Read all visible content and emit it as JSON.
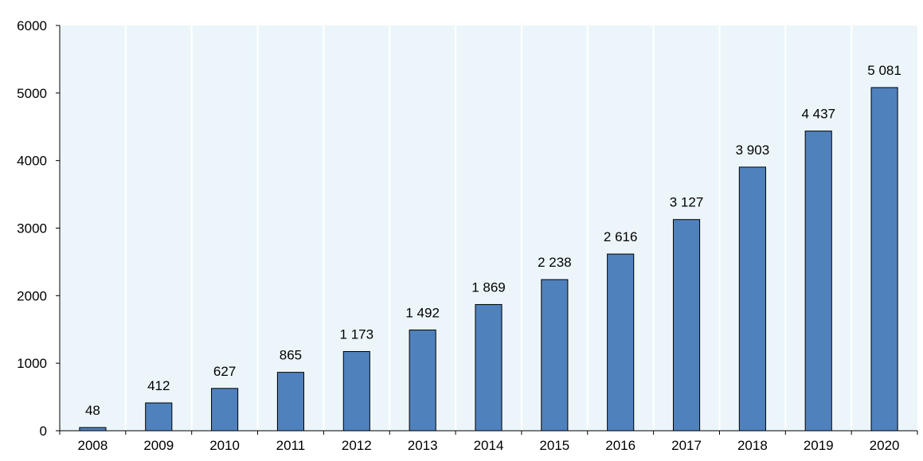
{
  "chart_data": {
    "type": "bar",
    "categories": [
      "2008",
      "2009",
      "2010",
      "2011",
      "2012",
      "2013",
      "2014",
      "2015",
      "2016",
      "2017",
      "2018",
      "2019",
      "2020"
    ],
    "values": [
      48,
      412,
      627,
      865,
      1173,
      1492,
      1869,
      2238,
      2616,
      3127,
      3903,
      4437,
      5081
    ],
    "data_labels": [
      "48",
      "412",
      "627",
      "865",
      "1 173",
      "1 492",
      "1 869",
      "2 238",
      "2 616",
      "3 127",
      "3 903",
      "4 437",
      "5 081"
    ],
    "y_ticks": [
      "0",
      "1000",
      "2000",
      "3000",
      "4000",
      "5000",
      "6000"
    ],
    "title": "",
    "xlabel": "",
    "ylabel": "",
    "ylim": [
      0,
      6000
    ],
    "grid": "vertical",
    "legend": "none",
    "colors": {
      "bar": "#4f81bd",
      "bar_stroke": "#000000",
      "plot_background": "#ecf6fa",
      "grid": "#ffffff",
      "axis": "#000000"
    }
  }
}
